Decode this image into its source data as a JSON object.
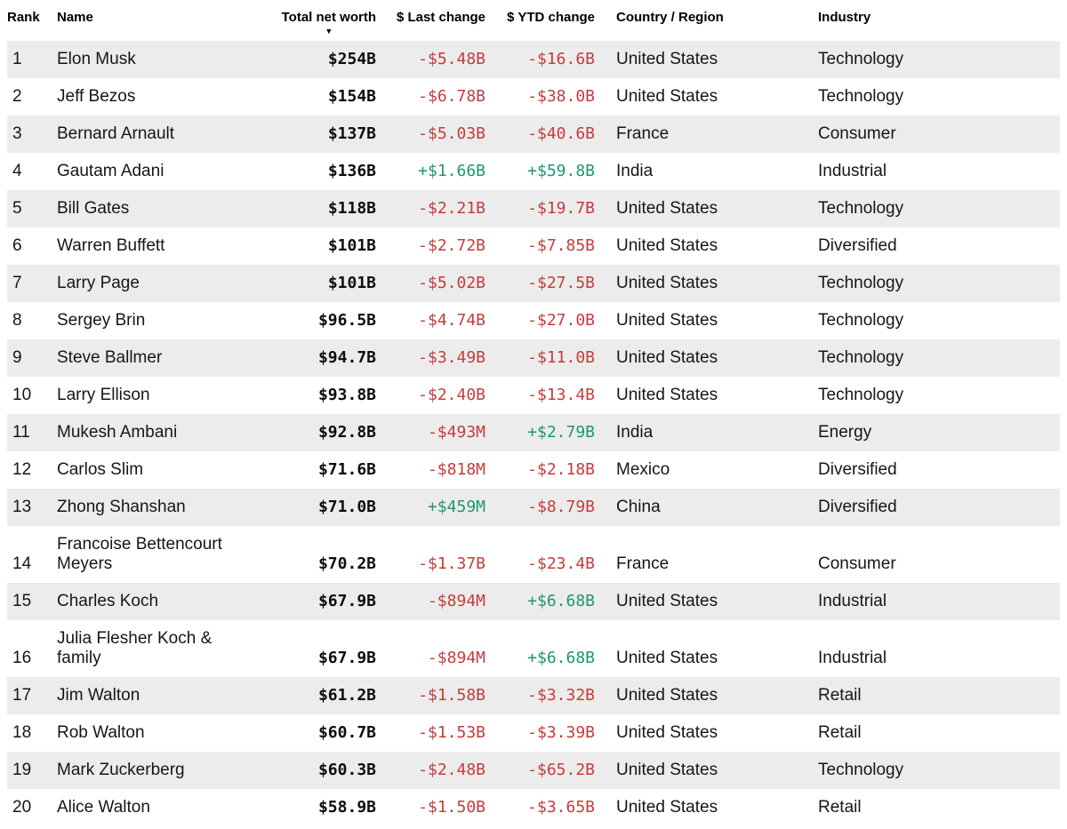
{
  "colors": {
    "positive_change": "#1e9673",
    "negative_change": "#c33d3a",
    "row_shade": "#ececec",
    "text": "#161616"
  },
  "table": {
    "columns": [
      {
        "label": "Rank"
      },
      {
        "label": "Name"
      },
      {
        "label": "Total net worth",
        "sorted": "descending",
        "sort_icon": "▼"
      },
      {
        "label": "$ Last change"
      },
      {
        "label": "$ YTD change"
      },
      {
        "label": "Country / Region"
      },
      {
        "label": "Industry"
      }
    ],
    "rows": [
      {
        "rank": "1",
        "name": "Elon Musk",
        "total_net_worth": "$254B",
        "last_change": "-$5.48B",
        "ytd_change": "-$16.6B",
        "country": "United States",
        "industry": "Technology"
      },
      {
        "rank": "2",
        "name": "Jeff Bezos",
        "total_net_worth": "$154B",
        "last_change": "-$6.78B",
        "ytd_change": "-$38.0B",
        "country": "United States",
        "industry": "Technology"
      },
      {
        "rank": "3",
        "name": "Bernard Arnault",
        "total_net_worth": "$137B",
        "last_change": "-$5.03B",
        "ytd_change": "-$40.6B",
        "country": "France",
        "industry": "Consumer"
      },
      {
        "rank": "4",
        "name": "Gautam Adani",
        "total_net_worth": "$136B",
        "last_change": "+$1.66B",
        "ytd_change": "+$59.8B",
        "country": "India",
        "industry": "Industrial"
      },
      {
        "rank": "5",
        "name": "Bill Gates",
        "total_net_worth": "$118B",
        "last_change": "-$2.21B",
        "ytd_change": "-$19.7B",
        "country": "United States",
        "industry": "Technology"
      },
      {
        "rank": "6",
        "name": "Warren Buffett",
        "total_net_worth": "$101B",
        "last_change": "-$2.72B",
        "ytd_change": "-$7.85B",
        "country": "United States",
        "industry": "Diversified"
      },
      {
        "rank": "7",
        "name": "Larry Page",
        "total_net_worth": "$101B",
        "last_change": "-$5.02B",
        "ytd_change": "-$27.5B",
        "country": "United States",
        "industry": "Technology"
      },
      {
        "rank": "8",
        "name": "Sergey Brin",
        "total_net_worth": "$96.5B",
        "last_change": "-$4.74B",
        "ytd_change": "-$27.0B",
        "country": "United States",
        "industry": "Technology"
      },
      {
        "rank": "9",
        "name": "Steve Ballmer",
        "total_net_worth": "$94.7B",
        "last_change": "-$3.49B",
        "ytd_change": "-$11.0B",
        "country": "United States",
        "industry": "Technology"
      },
      {
        "rank": "10",
        "name": "Larry Ellison",
        "total_net_worth": "$93.8B",
        "last_change": "-$2.40B",
        "ytd_change": "-$13.4B",
        "country": "United States",
        "industry": "Technology"
      },
      {
        "rank": "11",
        "name": "Mukesh Ambani",
        "total_net_worth": "$92.8B",
        "last_change": "-$493M",
        "ytd_change": "+$2.79B",
        "country": "India",
        "industry": "Energy"
      },
      {
        "rank": "12",
        "name": "Carlos Slim",
        "total_net_worth": "$71.6B",
        "last_change": "-$818M",
        "ytd_change": "-$2.18B",
        "country": "Mexico",
        "industry": "Diversified"
      },
      {
        "rank": "13",
        "name": "Zhong Shanshan",
        "total_net_worth": "$71.0B",
        "last_change": "+$459M",
        "ytd_change": "-$8.79B",
        "country": "China",
        "industry": "Diversified"
      },
      {
        "rank": "14",
        "name": "Francoise Bettencourt Meyers",
        "total_net_worth": "$70.2B",
        "last_change": "-$1.37B",
        "ytd_change": "-$23.4B",
        "country": "France",
        "industry": "Consumer"
      },
      {
        "rank": "15",
        "name": "Charles Koch",
        "total_net_worth": "$67.9B",
        "last_change": "-$894M",
        "ytd_change": "+$6.68B",
        "country": "United States",
        "industry": "Industrial"
      },
      {
        "rank": "16",
        "name": "Julia Flesher Koch & family",
        "total_net_worth": "$67.9B",
        "last_change": "-$894M",
        "ytd_change": "+$6.68B",
        "country": "United States",
        "industry": "Industrial"
      },
      {
        "rank": "17",
        "name": "Jim Walton",
        "total_net_worth": "$61.2B",
        "last_change": "-$1.58B",
        "ytd_change": "-$3.32B",
        "country": "United States",
        "industry": "Retail"
      },
      {
        "rank": "18",
        "name": "Rob Walton",
        "total_net_worth": "$60.7B",
        "last_change": "-$1.53B",
        "ytd_change": "-$3.39B",
        "country": "United States",
        "industry": "Retail"
      },
      {
        "rank": "19",
        "name": "Mark Zuckerberg",
        "total_net_worth": "$60.3B",
        "last_change": "-$2.48B",
        "ytd_change": "-$65.2B",
        "country": "United States",
        "industry": "Technology"
      },
      {
        "rank": "20",
        "name": "Alice Walton",
        "total_net_worth": "$58.9B",
        "last_change": "-$1.50B",
        "ytd_change": "-$3.65B",
        "country": "United States",
        "industry": "Retail"
      }
    ]
  }
}
